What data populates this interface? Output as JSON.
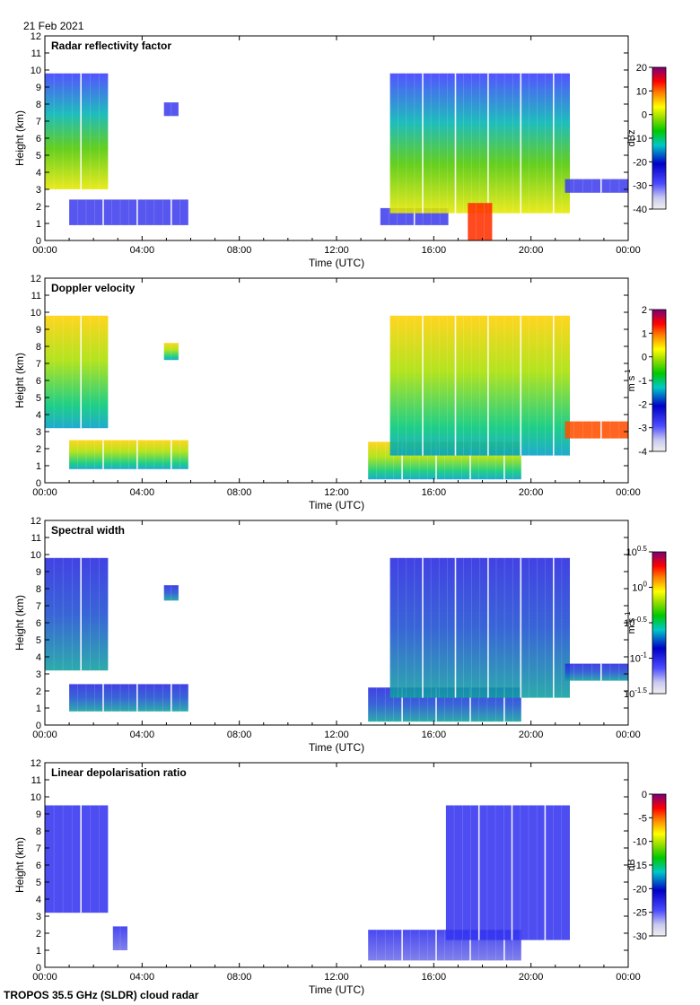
{
  "date_label": "21 Feb 2021",
  "footer": "TROPOS 35.5 GHz (SLDR) cloud radar",
  "chart_data": [
    {
      "type": "heatmap",
      "title": "Radar reflectivity factor",
      "xlabel": "Time (UTC)",
      "ylabel": "Height (km)",
      "xlim": [
        0,
        24
      ],
      "ylim": [
        0,
        12
      ],
      "x_ticks": [
        "00:00",
        "04:00",
        "08:00",
        "12:00",
        "16:00",
        "20:00",
        "00:00"
      ],
      "y_ticks": [
        "0",
        "1",
        "2",
        "3",
        "4",
        "5",
        "6",
        "7",
        "8",
        "9",
        "10",
        "11",
        "12"
      ],
      "colorbar": {
        "label": "dBz",
        "ticks": [
          "20",
          "10",
          "0",
          "-10",
          "-20",
          "-30",
          "-40"
        ],
        "range": [
          -40,
          20
        ]
      },
      "regions": [
        {
          "t": [
            0.0,
            2.6
          ],
          "h": [
            3.0,
            9.8
          ],
          "value": "mixed"
        },
        {
          "t": [
            4.9,
            5.5
          ],
          "h": [
            7.3,
            8.1
          ],
          "value": "low"
        },
        {
          "t": [
            1.0,
            5.9
          ],
          "h": [
            0.9,
            2.4
          ],
          "value": "low"
        },
        {
          "t": [
            13.8,
            16.6
          ],
          "h": [
            0.9,
            1.9
          ],
          "value": "low"
        },
        {
          "t": [
            14.2,
            21.6
          ],
          "h": [
            1.6,
            9.8
          ],
          "value": "mixed"
        },
        {
          "t": [
            17.4,
            18.4
          ],
          "h": [
            0.0,
            2.2
          ],
          "value": "high"
        },
        {
          "t": [
            21.4,
            24.0
          ],
          "h": [
            2.8,
            3.6
          ],
          "value": "low"
        }
      ]
    },
    {
      "type": "heatmap",
      "title": "Doppler velocity",
      "xlabel": "Time (UTC)",
      "ylabel": "Height (km)",
      "xlim": [
        0,
        24
      ],
      "ylim": [
        0,
        12
      ],
      "x_ticks": [
        "00:00",
        "04:00",
        "08:00",
        "12:00",
        "16:00",
        "20:00",
        "00:00"
      ],
      "y_ticks": [
        "0",
        "1",
        "2",
        "3",
        "4",
        "5",
        "6",
        "7",
        "8",
        "9",
        "10",
        "11",
        "12"
      ],
      "colorbar": {
        "label": "m s-1",
        "ticks": [
          "2",
          "1",
          "0",
          "-1",
          "-2",
          "-3",
          "-4"
        ],
        "range": [
          -4,
          2
        ]
      },
      "regions": [
        {
          "t": [
            0.0,
            2.6
          ],
          "h": [
            3.2,
            9.8
          ],
          "value": "mixed"
        },
        {
          "t": [
            4.9,
            5.5
          ],
          "h": [
            7.2,
            8.2
          ],
          "value": "mixed"
        },
        {
          "t": [
            1.0,
            5.9
          ],
          "h": [
            0.8,
            2.5
          ],
          "value": "mixed"
        },
        {
          "t": [
            13.3,
            19.6
          ],
          "h": [
            0.2,
            2.4
          ],
          "value": "mixed"
        },
        {
          "t": [
            14.2,
            21.6
          ],
          "h": [
            1.6,
            9.8
          ],
          "value": "mixed"
        },
        {
          "t": [
            21.4,
            24.0
          ],
          "h": [
            2.6,
            3.6
          ],
          "value": "high"
        }
      ]
    },
    {
      "type": "heatmap",
      "title": "Spectral width",
      "xlabel": "Time (UTC)",
      "ylabel": "Height (km)",
      "xlim": [
        0,
        24
      ],
      "ylim": [
        0,
        12
      ],
      "x_ticks": [
        "00:00",
        "04:00",
        "08:00",
        "12:00",
        "16:00",
        "20:00",
        "00:00"
      ],
      "y_ticks": [
        "0",
        "1",
        "2",
        "3",
        "4",
        "5",
        "6",
        "7",
        "8",
        "9",
        "10",
        "11",
        "12"
      ],
      "colorbar": {
        "label": "m s-1",
        "ticks": [
          "10^0.5",
          "10^0",
          "10^-0.5",
          "10^-1",
          "10^-1.5"
        ],
        "range": [
          -1.5,
          0.5
        ],
        "log": true
      },
      "regions": [
        {
          "t": [
            0.0,
            2.6
          ],
          "h": [
            3.2,
            9.8
          ],
          "value": "mixed"
        },
        {
          "t": [
            4.9,
            5.5
          ],
          "h": [
            7.3,
            8.2
          ],
          "value": "mixed"
        },
        {
          "t": [
            1.0,
            5.9
          ],
          "h": [
            0.8,
            2.4
          ],
          "value": "mixed"
        },
        {
          "t": [
            13.3,
            19.6
          ],
          "h": [
            0.2,
            2.2
          ],
          "value": "mixed"
        },
        {
          "t": [
            14.2,
            21.6
          ],
          "h": [
            1.6,
            9.8
          ],
          "value": "mixed"
        },
        {
          "t": [
            21.4,
            24.0
          ],
          "h": [
            2.6,
            3.6
          ],
          "value": "mixed"
        }
      ]
    },
    {
      "type": "heatmap",
      "title": "Linear depolarisation ratio",
      "xlabel": "Time (UTC)",
      "ylabel": "Height (km)",
      "xlim": [
        0,
        24
      ],
      "ylim": [
        0,
        12
      ],
      "x_ticks": [
        "00:00",
        "04:00",
        "08:00",
        "12:00",
        "16:00",
        "20:00",
        "00:00"
      ],
      "y_ticks": [
        "0",
        "1",
        "2",
        "3",
        "4",
        "5",
        "6",
        "7",
        "8",
        "9",
        "10",
        "11",
        "12"
      ],
      "colorbar": {
        "label": "dB",
        "ticks": [
          "0",
          "-5",
          "-10",
          "-15",
          "-20",
          "-25",
          "-30"
        ],
        "range": [
          -30,
          0
        ]
      },
      "regions": [
        {
          "t": [
            0.0,
            2.6
          ],
          "h": [
            3.2,
            9.5
          ],
          "value": "low"
        },
        {
          "t": [
            2.8,
            3.4
          ],
          "h": [
            1.0,
            2.4
          ],
          "value": "mixed"
        },
        {
          "t": [
            13.3,
            19.6
          ],
          "h": [
            0.4,
            2.2
          ],
          "value": "mixed"
        },
        {
          "t": [
            16.5,
            21.6
          ],
          "h": [
            1.6,
            9.5
          ],
          "value": "low"
        }
      ]
    }
  ]
}
